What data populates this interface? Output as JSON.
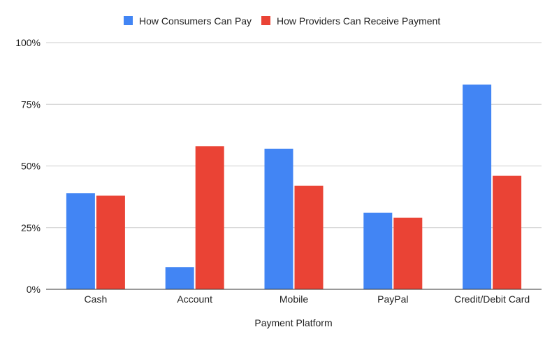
{
  "chart_data": {
    "type": "bar",
    "title": "",
    "xlabel": "Payment Platform",
    "ylabel": "",
    "categories": [
      "Cash",
      "Account",
      "Mobile",
      "PayPal",
      "Credit/Debit Card"
    ],
    "series": [
      {
        "name": "How Consumers Can Pay",
        "color": "#4285f4",
        "values": [
          39,
          9,
          57,
          31,
          83
        ]
      },
      {
        "name": "How Providers Can Receive Payment",
        "color": "#ea4335",
        "values": [
          38,
          58,
          42,
          29,
          46
        ]
      }
    ],
    "ylim": [
      0,
      100
    ],
    "yticks": [
      "0%",
      "25%",
      "50%",
      "75%",
      "100%"
    ],
    "grid": true,
    "legend_position": "top"
  }
}
